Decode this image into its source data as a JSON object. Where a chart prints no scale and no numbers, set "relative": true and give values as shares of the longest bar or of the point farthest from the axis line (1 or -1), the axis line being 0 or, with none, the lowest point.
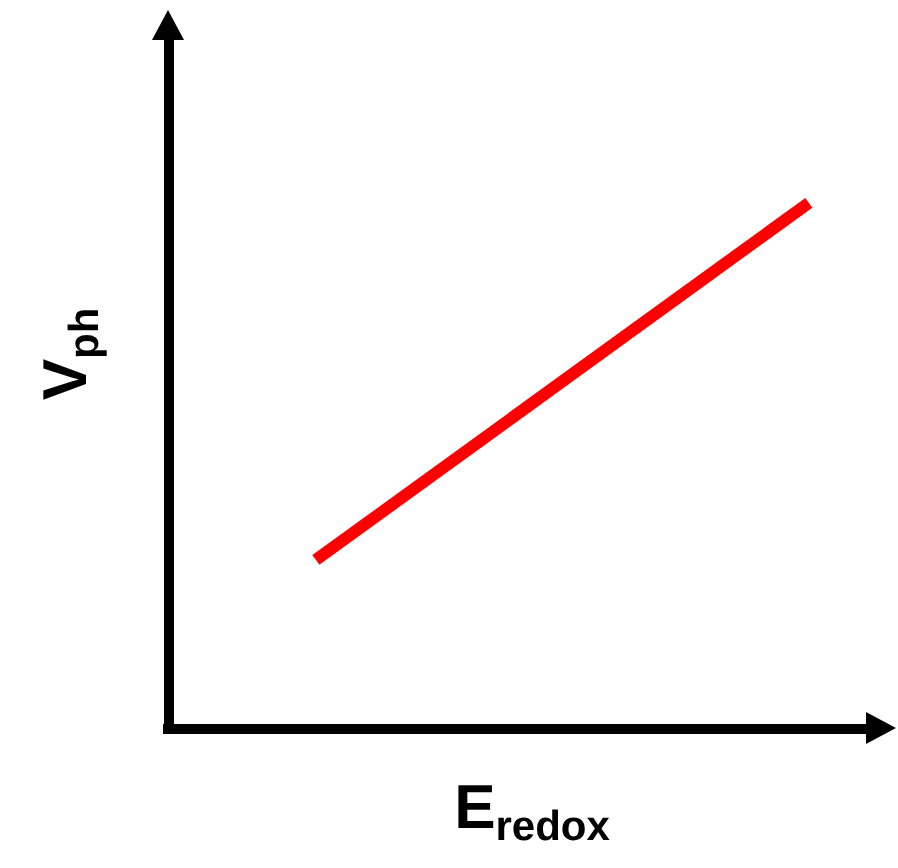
{
  "chart_data": {
    "type": "line",
    "xlabel": "E$_{redox}$",
    "ylabel": "V$_{ph}$",
    "categories": [
      null,
      null
    ],
    "relative": true,
    "marker": "none",
    "line_style": "solid",
    "series": [
      {
        "color": "#ff0000",
        "values": [
          0.32,
          1
        ]
      }
    ]
  }
}
